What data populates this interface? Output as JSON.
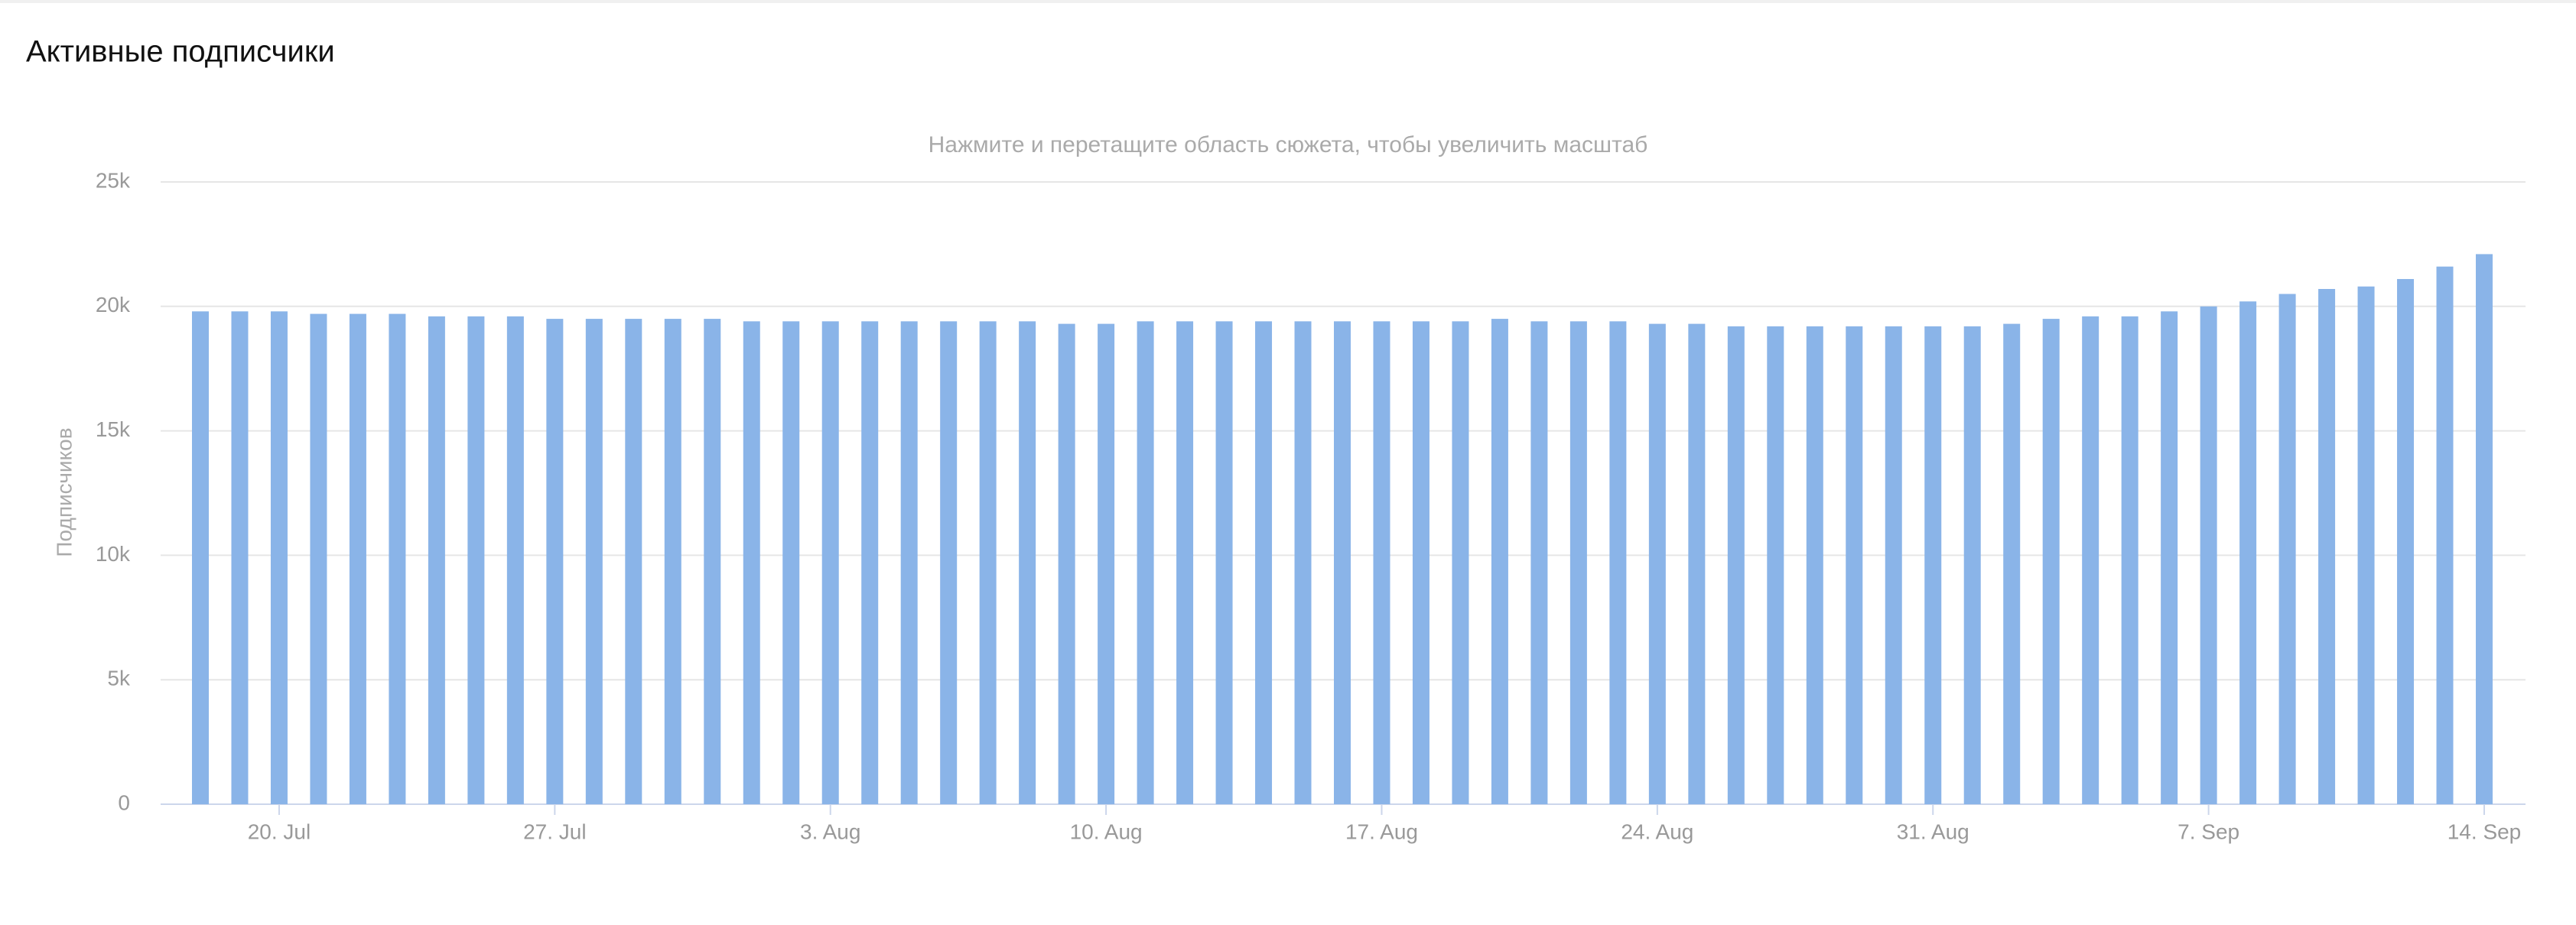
{
  "chart_data": {
    "type": "bar",
    "title": "Активные подписчики",
    "subtitle": "Нажмите и перетащите область сюжета, чтобы увеличить масштаб",
    "y_label": "Подписчиков",
    "categories": [
      null,
      null,
      "20. Jul",
      null,
      null,
      null,
      null,
      null,
      null,
      "27. Jul",
      null,
      null,
      null,
      null,
      null,
      null,
      "3. Aug",
      null,
      null,
      null,
      null,
      null,
      null,
      "10. Aug",
      null,
      null,
      null,
      null,
      null,
      null,
      "17. Aug",
      null,
      null,
      null,
      null,
      null,
      null,
      "24. Aug",
      null,
      null,
      null,
      null,
      null,
      null,
      "31. Aug",
      null,
      null,
      null,
      null,
      null,
      null,
      "7. Sep",
      null,
      null,
      null,
      null,
      null,
      null,
      "14. Sep"
    ],
    "values": [
      19800,
      19800,
      19800,
      19700,
      19700,
      19700,
      19600,
      19600,
      19600,
      19500,
      19500,
      19500,
      19500,
      19500,
      19400,
      19400,
      19400,
      19400,
      19400,
      19400,
      19400,
      19400,
      19300,
      19300,
      19400,
      19400,
      19400,
      19400,
      19400,
      19400,
      19400,
      19400,
      19400,
      19500,
      19400,
      19400,
      19400,
      19300,
      19300,
      19200,
      19200,
      19200,
      19200,
      19200,
      19200,
      19200,
      19300,
      19500,
      19600,
      19600,
      19800,
      20000,
      20200,
      20500,
      20700,
      20800,
      21100,
      21600,
      22100
    ],
    "color": "#8ab4e8",
    "ylim": [
      0,
      25000
    ],
    "yticks": [
      0,
      {
        "value": 5000,
        "label": "5k"
      },
      {
        "value": 10000,
        "label": "10k"
      },
      {
        "value": 15000,
        "label": "15k"
      },
      {
        "value": 20000,
        "label": "20k"
      },
      {
        "value": 25000,
        "label": "25k"
      }
    ],
    "grid": true
  }
}
